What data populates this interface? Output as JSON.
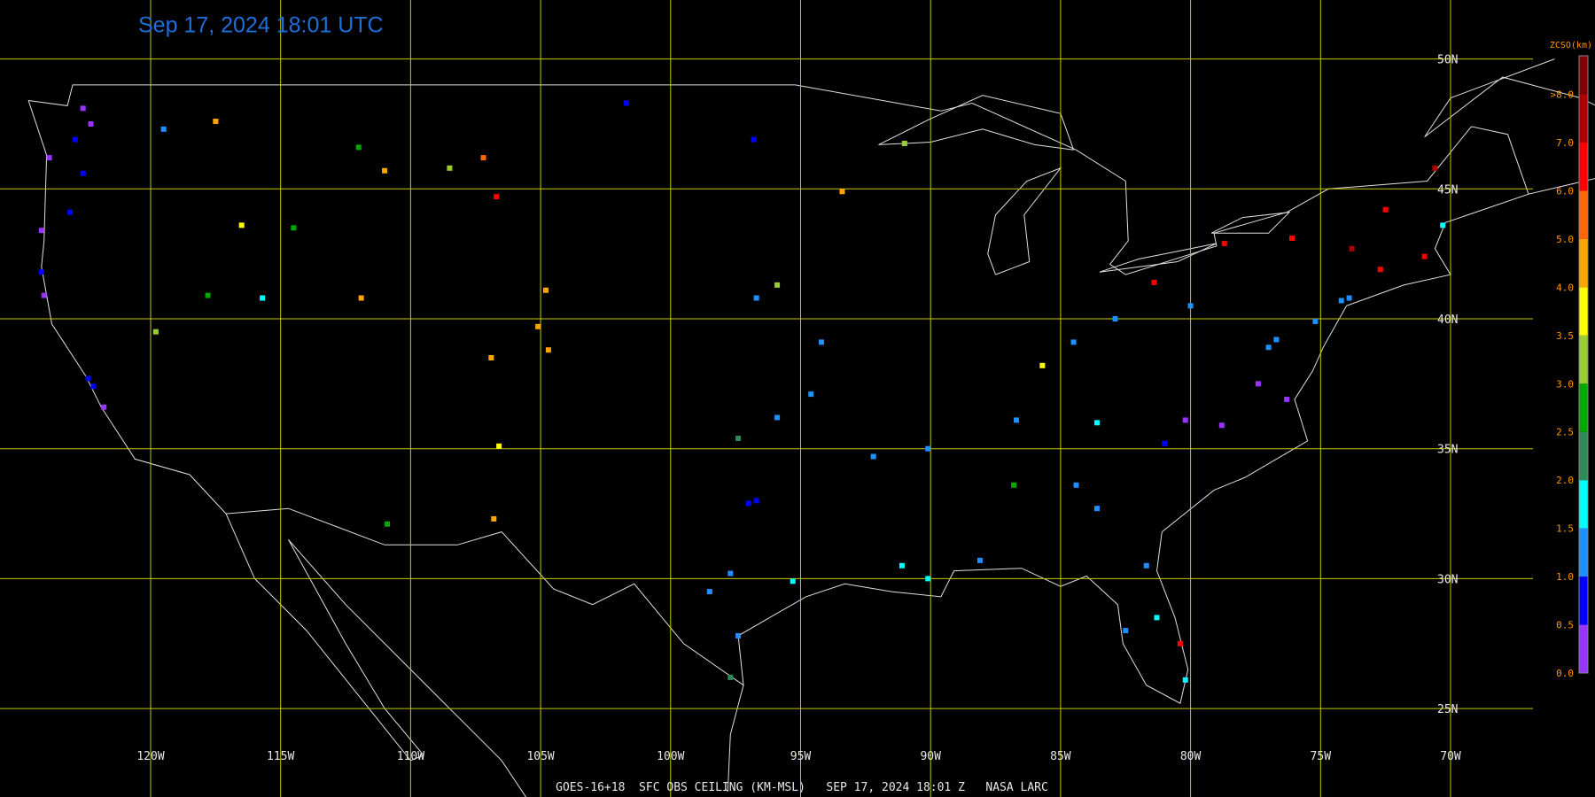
{
  "title": "Sep 17, 2024 18:01 UTC",
  "footer": "GOES-16+18  SFC OBS CEILING (KM-MSL)   SEP 17, 2024 18:01 Z   NASA LARC",
  "legend": {
    "title": "ZCSO(km)",
    "levels": [
      {
        "value": 0,
        "label": "0.0",
        "color": "#9933ff"
      },
      {
        "value": 0.5,
        "label": "0.5",
        "color": "#0000ff"
      },
      {
        "value": 1,
        "label": "1.0",
        "color": "#1e90ff"
      },
      {
        "value": 1.5,
        "label": "1.5",
        "color": "#00ffff"
      },
      {
        "value": 2,
        "label": "2.0",
        "color": "#2e8b57"
      },
      {
        "value": 2.5,
        "label": "2.5",
        "color": "#00aa00"
      },
      {
        "value": 3,
        "label": "3.0",
        "color": "#9acd32"
      },
      {
        "value": 3.5,
        "label": "3.5",
        "color": "#ffff00"
      },
      {
        "value": 4,
        "label": "4.0",
        "color": "#ffa500"
      },
      {
        "value": 5,
        "label": "5.0",
        "color": "#ff6600"
      },
      {
        "value": 6,
        "label": "6.0",
        "color": "#ff0000"
      },
      {
        "value": 7,
        "label": "7.0",
        "color": "#b00000"
      },
      {
        "value": 8,
        "label": ">8.0",
        "color": "#800000"
      }
    ]
  },
  "lon_ticks": [
    {
      "value": -120,
      "label": "120W"
    },
    {
      "value": -115,
      "label": "115W"
    },
    {
      "value": -110,
      "label": "110W"
    },
    {
      "value": -105,
      "label": "105W"
    },
    {
      "value": -100,
      "label": "100W"
    },
    {
      "value": -95,
      "label": "95W"
    },
    {
      "value": -90,
      "label": "90W"
    },
    {
      "value": -85,
      "label": "85W"
    },
    {
      "value": -80,
      "label": "80W"
    },
    {
      "value": -75,
      "label": "75W"
    },
    {
      "value": -70,
      "label": "70W"
    }
  ],
  "lat_ticks": [
    {
      "value": 50,
      "label": "50N"
    },
    {
      "value": 45,
      "label": "45N"
    },
    {
      "value": 40,
      "label": "40N"
    },
    {
      "value": 35,
      "label": "35N"
    },
    {
      "value": 30,
      "label": "30N"
    },
    {
      "value": 25,
      "label": "25N"
    }
  ],
  "stations": [
    [
      -122.3,
      47.5,
      0.3
    ],
    [
      -122.6,
      48.1,
      0.4
    ],
    [
      -122.9,
      46.9,
      0.8
    ],
    [
      -123.9,
      46.2,
      0.3
    ],
    [
      -122.6,
      45.6,
      0.8
    ],
    [
      -123.1,
      44.1,
      0.9
    ],
    [
      -124.2,
      43.4,
      0.4
    ],
    [
      -124.2,
      41.8,
      0.9
    ],
    [
      -124.1,
      40.9,
      0.4
    ],
    [
      -122.4,
      37.7,
      0.8
    ],
    [
      -122.2,
      37.4,
      0.9
    ],
    [
      -121.8,
      36.6,
      0.3
    ],
    [
      -119.5,
      47.3,
      1.3
    ],
    [
      -117.5,
      47.6,
      4.3
    ],
    [
      -116.5,
      43.6,
      3.6
    ],
    [
      -114.5,
      43.5,
      2.7
    ],
    [
      -112,
      46.6,
      2.7
    ],
    [
      -111,
      45.7,
      4.5
    ],
    [
      -108.5,
      45.8,
      3
    ],
    [
      -106.7,
      44.7,
      6.3
    ],
    [
      -107.2,
      46.2,
      5.2
    ],
    [
      -104.8,
      41.1,
      4.6
    ],
    [
      -105.1,
      39.7,
      4.2
    ],
    [
      -104.7,
      38.8,
      4.4
    ],
    [
      -106.9,
      38.5,
      4
    ],
    [
      -106.6,
      35.1,
      3.7
    ],
    [
      -106.8,
      32.3,
      4.5
    ],
    [
      -110.9,
      32.1,
      2.9
    ],
    [
      -111.9,
      40.8,
      4.2
    ],
    [
      -119.8,
      39.5,
      3.4
    ],
    [
      -117.8,
      40.9,
      2.8
    ],
    [
      -115.7,
      40.8,
      1.7
    ],
    [
      -101.7,
      48.3,
      0.8
    ],
    [
      -96.8,
      46.9,
      0.9
    ],
    [
      -96.7,
      40.8,
      1.4
    ],
    [
      -95.9,
      41.3,
      3
    ],
    [
      -93.4,
      44.9,
      4.5
    ],
    [
      -94.2,
      39.1,
      1
    ],
    [
      -94.6,
      37.1,
      1.4
    ],
    [
      -95.9,
      36.2,
      1.2
    ],
    [
      -97.4,
      35.4,
      2
    ],
    [
      -96.7,
      33,
      0.9
    ],
    [
      -97,
      32.9,
      0.9
    ],
    [
      -95.3,
      29.9,
      1.6
    ],
    [
      -97.7,
      30.2,
      1.3
    ],
    [
      -98.5,
      29.5,
      1.4
    ],
    [
      -97.4,
      27.8,
      1.3
    ],
    [
      -97.7,
      26.2,
      2.2
    ],
    [
      -92.2,
      34.7,
      1.4
    ],
    [
      -90.1,
      35,
      1.2
    ],
    [
      -90.1,
      30,
      1.6
    ],
    [
      -91.1,
      30.5,
      1.8
    ],
    [
      -88.1,
      30.7,
      1.4
    ],
    [
      -86.8,
      33.6,
      2.6
    ],
    [
      -84.4,
      33.6,
      1.3
    ],
    [
      -83.6,
      32.7,
      1
    ],
    [
      -81.7,
      30.5,
      1.4
    ],
    [
      -82.5,
      28,
      1.2
    ],
    [
      -80.2,
      26.1,
      1.8
    ],
    [
      -80.4,
      27.5,
      6.5
    ],
    [
      -81.3,
      28.5,
      1.7
    ],
    [
      -86.7,
      36.1,
      1.3
    ],
    [
      -85.7,
      38.2,
      3.6
    ],
    [
      -84.5,
      39.1,
      1.2
    ],
    [
      -82.9,
      40,
      1.4
    ],
    [
      -83.6,
      36,
      1.6
    ],
    [
      -81,
      35.2,
      0.5
    ],
    [
      -80.2,
      36.1,
      0.3
    ],
    [
      -78.8,
      35.9,
      0.4
    ],
    [
      -77.4,
      37.5,
      0.3
    ],
    [
      -76.3,
      36.9,
      0.4
    ],
    [
      -77,
      38.9,
      1
    ],
    [
      -76.7,
      39.2,
      1.2
    ],
    [
      -75.2,
      39.9,
      1.3
    ],
    [
      -74.2,
      40.7,
      1.2
    ],
    [
      -73.9,
      40.8,
      1.4
    ],
    [
      -71,
      42.4,
      6.2
    ],
    [
      -72.7,
      41.9,
      6.7
    ],
    [
      -73.8,
      42.7,
      7.5
    ],
    [
      -76.1,
      43.1,
      6.8
    ],
    [
      -78.7,
      42.9,
      6.4
    ],
    [
      -80,
      40.5,
      1.1
    ],
    [
      -81.4,
      41.4,
      6
    ],
    [
      -91,
      46.75,
      3.2
    ],
    [
      -70.3,
      43.6,
      1.7
    ],
    [
      -70.6,
      45.8,
      7.2
    ],
    [
      -72.5,
      44.2,
      6.8
    ]
  ]
}
